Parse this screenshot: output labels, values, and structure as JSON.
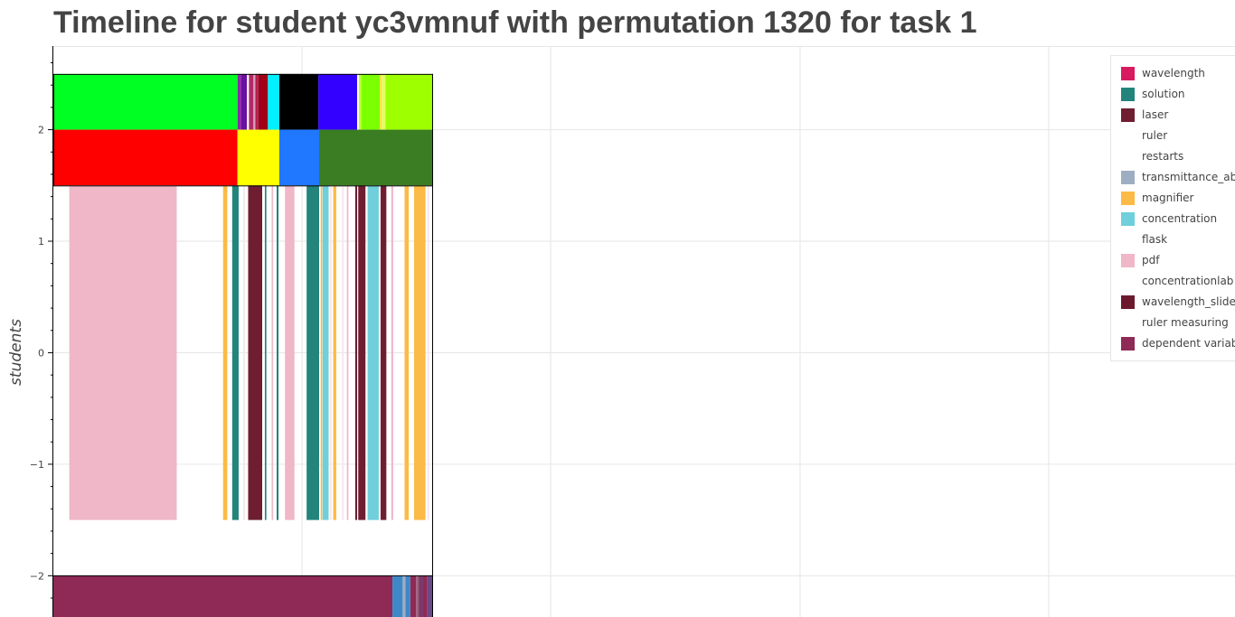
{
  "title": "Timeline for student yc3vmnuf with permutation 1320 for task 1",
  "chart_data": {
    "type": "timeline",
    "ylabel": "students",
    "yticks": [
      2,
      1,
      0,
      -1,
      -2
    ],
    "ytick_labels": [
      "2",
      "1",
      "0",
      "−1",
      "−2"
    ],
    "ylim": [
      -2.37,
      2.75
    ],
    "grid": true,
    "legend_position": "top-right",
    "legend": [
      {
        "name": "wavelength",
        "color": "#d81b60"
      },
      {
        "name": "solution",
        "color": "#23847c"
      },
      {
        "name": "laser",
        "color": "#6e1e30"
      },
      {
        "name": "ruler",
        "color": "#ffffff"
      },
      {
        "name": "restarts",
        "color": "#ffffff"
      },
      {
        "name": "transmittance_abs",
        "color": "#9eaec2"
      },
      {
        "name": "magnifier",
        "color": "#fcba46"
      },
      {
        "name": "concentration",
        "color": "#6fcfdb"
      },
      {
        "name": "flask",
        "color": "#ffffff"
      },
      {
        "name": "pdf",
        "color": "#efb7c8"
      },
      {
        "name": "concentrationlab",
        "color": "#ffffff"
      },
      {
        "name": "wavelength_slider",
        "color": "#6b1a2e"
      },
      {
        "name": "ruler measuring",
        "color": "#ffffff"
      },
      {
        "name": "dependent variable",
        "color": "#8e2a55"
      }
    ],
    "rows": [
      {
        "y_range": [
          2.0,
          2.5
        ],
        "segments": [
          {
            "start": 0.0,
            "end": 0.485,
            "color": "#00ff22"
          },
          {
            "start": 0.485,
            "end": 0.495,
            "color": "#8a2ba8"
          },
          {
            "start": 0.495,
            "end": 0.51,
            "color": "#6b0fa0"
          },
          {
            "start": 0.51,
            "end": 0.515,
            "color": "#ffffff"
          },
          {
            "start": 0.515,
            "end": 0.527,
            "color": "#b32b63"
          },
          {
            "start": 0.527,
            "end": 0.532,
            "color": "#d8a0c0"
          },
          {
            "start": 0.532,
            "end": 0.54,
            "color": "#b0204a"
          },
          {
            "start": 0.54,
            "end": 0.565,
            "color": "#a00018"
          },
          {
            "start": 0.565,
            "end": 0.595,
            "color": "#00f0ff"
          },
          {
            "start": 0.595,
            "end": 0.698,
            "color": "#000000"
          },
          {
            "start": 0.698,
            "end": 0.8,
            "color": "#3300ff"
          },
          {
            "start": 0.8,
            "end": 0.805,
            "color": "#ffffff"
          },
          {
            "start": 0.805,
            "end": 0.812,
            "color": "#b4ff30"
          },
          {
            "start": 0.812,
            "end": 0.86,
            "color": "#7cff00"
          },
          {
            "start": 0.86,
            "end": 0.865,
            "color": "#ffe040"
          },
          {
            "start": 0.865,
            "end": 0.875,
            "color": "#e0ff60"
          },
          {
            "start": 0.875,
            "end": 1.0,
            "color": "#9eff00"
          }
        ]
      },
      {
        "y_range": [
          1.5,
          2.0
        ],
        "segments": [
          {
            "start": 0.0,
            "end": 0.485,
            "color": "#ff0000"
          },
          {
            "start": 0.485,
            "end": 0.595,
            "color": "#ffff00"
          },
          {
            "start": 0.595,
            "end": 0.7,
            "color": "#1f78ff"
          },
          {
            "start": 0.7,
            "end": 1.0,
            "color": "#3a7d22"
          }
        ]
      },
      {
        "y_range": [
          -1.5,
          1.5
        ],
        "segments": [
          {
            "start": 0.042,
            "end": 0.325,
            "color": "#efb7c8"
          },
          {
            "start": 0.447,
            "end": 0.458,
            "color": "#fcba46"
          },
          {
            "start": 0.471,
            "end": 0.488,
            "color": "#23847c"
          },
          {
            "start": 0.5,
            "end": 0.505,
            "color": "#f7e8ee"
          },
          {
            "start": 0.513,
            "end": 0.55,
            "color": "#6e1e30"
          },
          {
            "start": 0.557,
            "end": 0.561,
            "color": "#23847c"
          },
          {
            "start": 0.575,
            "end": 0.579,
            "color": "#efb7c8"
          },
          {
            "start": 0.588,
            "end": 0.593,
            "color": "#23847c"
          },
          {
            "start": 0.61,
            "end": 0.635,
            "color": "#efb7c8"
          },
          {
            "start": 0.667,
            "end": 0.7,
            "color": "#23847c"
          },
          {
            "start": 0.704,
            "end": 0.708,
            "color": "#fcba46"
          },
          {
            "start": 0.709,
            "end": 0.725,
            "color": "#6fcfdb"
          },
          {
            "start": 0.728,
            "end": 0.733,
            "color": "#f7e8ee"
          },
          {
            "start": 0.737,
            "end": 0.745,
            "color": "#fcba46"
          },
          {
            "start": 0.76,
            "end": 0.765,
            "color": "#f7e8ee"
          },
          {
            "start": 0.773,
            "end": 0.777,
            "color": "#efb7c8"
          },
          {
            "start": 0.795,
            "end": 0.8,
            "color": "#6e1e30"
          },
          {
            "start": 0.803,
            "end": 0.822,
            "color": "#6e1e30"
          },
          {
            "start": 0.826,
            "end": 0.83,
            "color": "#f7e8ee"
          },
          {
            "start": 0.828,
            "end": 0.857,
            "color": "#6fcfdb"
          },
          {
            "start": 0.857,
            "end": 0.862,
            "color": "#f7e8ee"
          },
          {
            "start": 0.862,
            "end": 0.877,
            "color": "#6e1e30"
          },
          {
            "start": 0.89,
            "end": 0.895,
            "color": "#efb7c8"
          },
          {
            "start": 0.925,
            "end": 0.936,
            "color": "#fcba46"
          },
          {
            "start": 0.95,
            "end": 0.98,
            "color": "#fcba46"
          },
          {
            "start": 0.985,
            "end": 0.99,
            "color": "#f7e8ee"
          }
        ]
      },
      {
        "y_range": [
          -2.5,
          -2.0
        ],
        "segments": [
          {
            "start": 0.0,
            "end": 0.893,
            "color": "#8e2a55"
          },
          {
            "start": 0.893,
            "end": 0.92,
            "color": "#3f88c8"
          },
          {
            "start": 0.92,
            "end": 0.927,
            "color": "#9eaec2"
          },
          {
            "start": 0.927,
            "end": 0.94,
            "color": "#3f88c8"
          },
          {
            "start": 0.94,
            "end": 0.955,
            "color": "#8e2a55"
          },
          {
            "start": 0.955,
            "end": 0.962,
            "color": "#a06080"
          },
          {
            "start": 0.962,
            "end": 0.975,
            "color": "#7b3a6a"
          },
          {
            "start": 0.975,
            "end": 0.985,
            "color": "#8e2a55"
          },
          {
            "start": 0.985,
            "end": 1.0,
            "color": "#6a4a88"
          }
        ]
      }
    ]
  }
}
